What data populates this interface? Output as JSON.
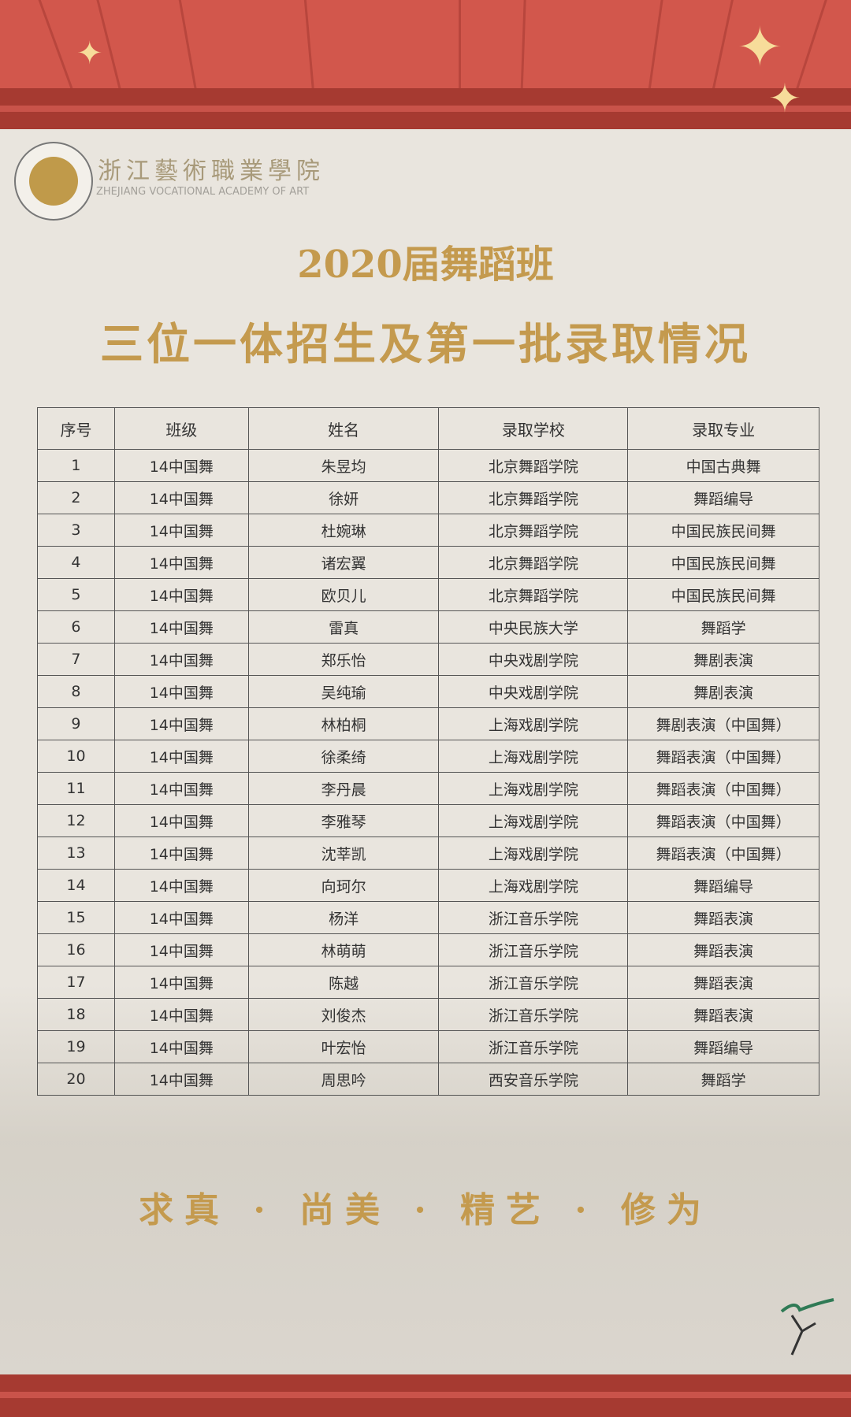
{
  "colors": {
    "banner_red": "#d2574c",
    "band_red": "#a63a31",
    "gold": "#c49a4e",
    "background": "#e9e5de"
  },
  "header": {
    "school_name_cn": "浙江藝術職業學院",
    "school_name_en": "ZHEJIANG VOCATIONAL ACADEMY OF ART"
  },
  "title": {
    "line1": "2020届舞蹈班",
    "line2": "三位一体招生及第一批录取情况"
  },
  "table": {
    "columns": [
      "序号",
      "班级",
      "姓名",
      "录取学校",
      "录取专业"
    ],
    "rows": [
      [
        "1",
        "14中国舞",
        "朱昱均",
        "北京舞蹈学院",
        "中国古典舞"
      ],
      [
        "2",
        "14中国舞",
        "徐妍",
        "北京舞蹈学院",
        "舞蹈编导"
      ],
      [
        "3",
        "14中国舞",
        "杜婉琳",
        "北京舞蹈学院",
        "中国民族民间舞"
      ],
      [
        "4",
        "14中国舞",
        "诸宏翼",
        "北京舞蹈学院",
        "中国民族民间舞"
      ],
      [
        "5",
        "14中国舞",
        "欧贝儿",
        "北京舞蹈学院",
        "中国民族民间舞"
      ],
      [
        "6",
        "14中国舞",
        "雷真",
        "中央民族大学",
        "舞蹈学"
      ],
      [
        "7",
        "14中国舞",
        "郑乐怡",
        "中央戏剧学院",
        "舞剧表演"
      ],
      [
        "8",
        "14中国舞",
        "吴纯瑜",
        "中央戏剧学院",
        "舞剧表演"
      ],
      [
        "9",
        "14中国舞",
        "林柏桐",
        "上海戏剧学院",
        "舞剧表演（中国舞）"
      ],
      [
        "10",
        "14中国舞",
        "徐柔绮",
        "上海戏剧学院",
        "舞蹈表演（中国舞）"
      ],
      [
        "11",
        "14中国舞",
        "李丹晨",
        "上海戏剧学院",
        "舞蹈表演（中国舞）"
      ],
      [
        "12",
        "14中国舞",
        "李雅琴",
        "上海戏剧学院",
        "舞蹈表演（中国舞）"
      ],
      [
        "13",
        "14中国舞",
        "沈莘凯",
        "上海戏剧学院",
        "舞蹈表演（中国舞）"
      ],
      [
        "14",
        "14中国舞",
        "向珂尔",
        "上海戏剧学院",
        "舞蹈编导"
      ],
      [
        "15",
        "14中国舞",
        "杨洋",
        "浙江音乐学院",
        "舞蹈表演"
      ],
      [
        "16",
        "14中国舞",
        "林萌萌",
        "浙江音乐学院",
        "舞蹈表演"
      ],
      [
        "17",
        "14中国舞",
        "陈越",
        "浙江音乐学院",
        "舞蹈表演"
      ],
      [
        "18",
        "14中国舞",
        "刘俊杰",
        "浙江音乐学院",
        "舞蹈表演"
      ],
      [
        "19",
        "14中国舞",
        "叶宏怡",
        "浙江音乐学院",
        "舞蹈编导"
      ],
      [
        "20",
        "14中国舞",
        "周思吟",
        "西安音乐学院",
        "舞蹈学"
      ]
    ]
  },
  "motto": "求真 · 尚美 · 精艺 · 修为",
  "icons": {
    "logo": "dancer-emblem-icon",
    "sparkle": "sparkle-icon",
    "footer_logo": "dancer-brush-icon"
  }
}
